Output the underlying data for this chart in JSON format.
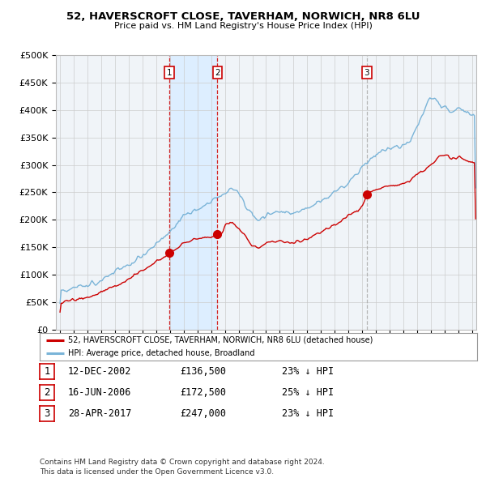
{
  "title": "52, HAVERSCROFT CLOSE, TAVERHAM, NORWICH, NR8 6LU",
  "subtitle": "Price paid vs. HM Land Registry's House Price Index (HPI)",
  "xlim": [
    1994.7,
    2025.3
  ],
  "ylim": [
    0,
    500000
  ],
  "yticks": [
    0,
    50000,
    100000,
    150000,
    200000,
    250000,
    300000,
    350000,
    400000,
    450000,
    500000
  ],
  "ytick_labels": [
    "£0",
    "£50K",
    "£100K",
    "£150K",
    "£200K",
    "£250K",
    "£300K",
    "£350K",
    "£400K",
    "£450K",
    "£500K"
  ],
  "hpi_color": "#7ab4d8",
  "price_color": "#cc0000",
  "vline_color_red": "#cc0000",
  "vline_color_gray": "#aaaaaa",
  "shade_color": "#ddeeff",
  "transactions": [
    {
      "date_num": 2002.95,
      "price": 136500,
      "label": "1",
      "vline_style": "dashed_red"
    },
    {
      "date_num": 2006.46,
      "price": 172500,
      "label": "2",
      "vline_style": "dashed_red"
    },
    {
      "date_num": 2017.32,
      "price": 247000,
      "label": "3",
      "vline_style": "dashed_gray"
    }
  ],
  "legend_entries": [
    "52, HAVERSCROFT CLOSE, TAVERHAM, NORWICH, NR8 6LU (detached house)",
    "HPI: Average price, detached house, Broadland"
  ],
  "table_rows": [
    {
      "num": "1",
      "date": "12-DEC-2002",
      "price": "£136,500",
      "change": "23% ↓ HPI"
    },
    {
      "num": "2",
      "date": "16-JUN-2006",
      "price": "£172,500",
      "change": "25% ↓ HPI"
    },
    {
      "num": "3",
      "date": "28-APR-2017",
      "price": "£247,000",
      "change": "23% ↓ HPI"
    }
  ],
  "footer": "Contains HM Land Registry data © Crown copyright and database right 2024.\nThis data is licensed under the Open Government Licence v3.0.",
  "background_color": "#ffffff",
  "plot_bg_color": "#f0f4f8",
  "grid_color": "#cccccc"
}
